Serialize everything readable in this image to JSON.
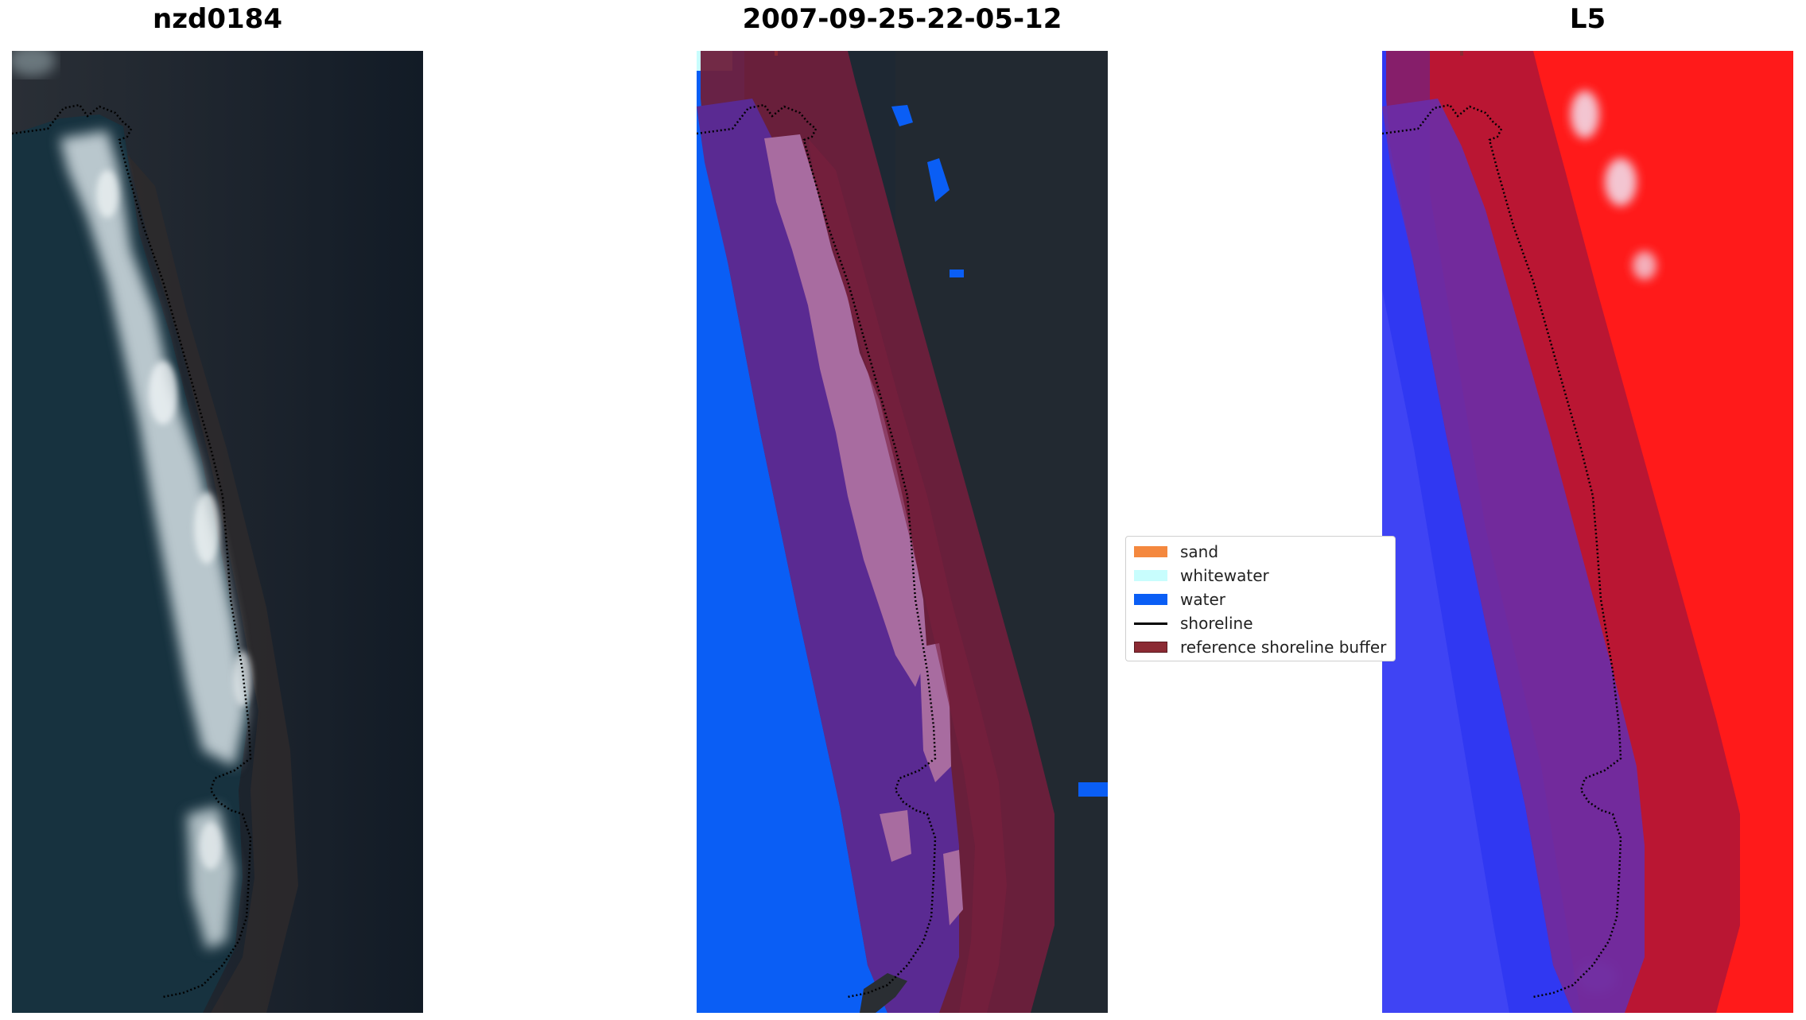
{
  "titles": {
    "left": "nzd0184",
    "middle": "2007-09-25-22-05-12",
    "right": "L5"
  },
  "legend": {
    "items": [
      {
        "label": "sand",
        "kind": "patch",
        "color": "#f4883e"
      },
      {
        "label": "whitewater",
        "kind": "patch",
        "color": "#c8fdfd"
      },
      {
        "label": "water",
        "kind": "patch",
        "color": "#0a5ef5"
      },
      {
        "label": "shoreline",
        "kind": "line",
        "color": "#000000"
      },
      {
        "label": "reference shoreline buffer",
        "kind": "patch",
        "color": "#8b2a33"
      }
    ]
  },
  "colors": {
    "land_dark": "#1c2430",
    "ocean": "#183244",
    "surf": "#d8e4e8",
    "sand_class": "#a86ca0",
    "buffer": "#6e1f3c",
    "water_class": "#0a5ef5",
    "index_high": "#ff1a1a",
    "index_low": "#2a2cf0"
  }
}
